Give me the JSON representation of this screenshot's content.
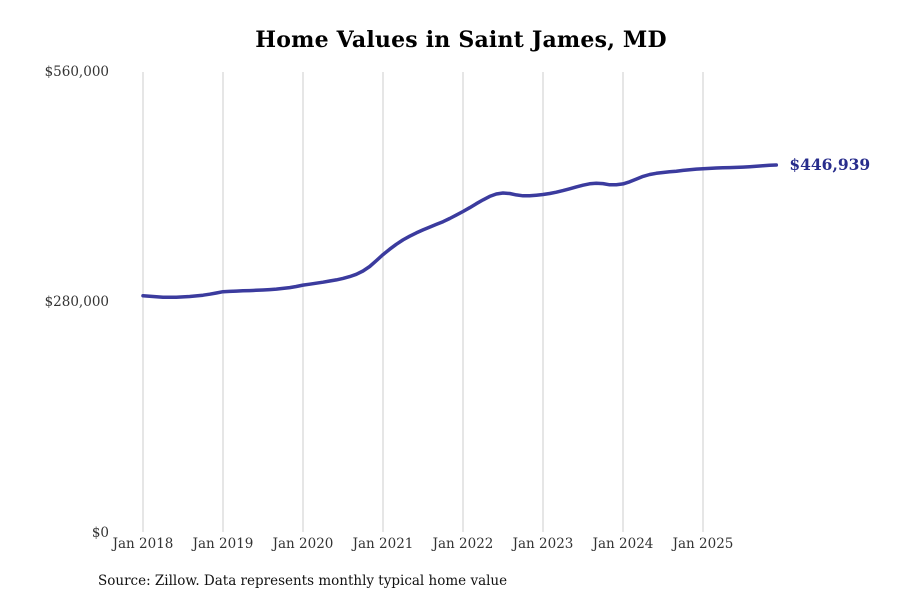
{
  "title": "Home Values in Saint James, MD",
  "source_note": "Source: Zillow. Data represents monthly typical home value",
  "end_label": "$446,939",
  "colors": {
    "line": "#3b3b9e",
    "end_label": "#282d8c",
    "gridline": "#cccccc",
    "tick_text": "#333333",
    "title_text": "#000000",
    "source_text": "#111111"
  },
  "chart_data": {
    "type": "line",
    "title": "Home Values in Saint James, MD",
    "x_start": "Jan 2018",
    "x_interval": "month",
    "x_tick_labels": [
      "Jan 2018",
      "Jan 2019",
      "Jan 2020",
      "Jan 2021",
      "Jan 2022",
      "Jan 2023",
      "Jan 2024",
      "Jan 2025"
    ],
    "y_ticks": [
      {
        "label": "$0",
        "value": 0
      },
      {
        "label": "$280,000",
        "value": 280000
      },
      {
        "label": "$560,000",
        "value": 560000
      }
    ],
    "ylim": [
      0,
      560000
    ],
    "grid": "vertical-only",
    "legend": "none",
    "last_point_label": "$446,939",
    "last_value": 446939,
    "series": [
      {
        "name": "Typical home value ($)",
        "values": [
          288000,
          287200,
          286600,
          286200,
          286000,
          286100,
          286500,
          287000,
          287700,
          288600,
          289800,
          291300,
          292800,
          293200,
          293600,
          293900,
          294200,
          294500,
          294900,
          295400,
          296000,
          296800,
          297800,
          299200,
          300800,
          302000,
          303200,
          304400,
          305800,
          307200,
          309000,
          311200,
          314000,
          318000,
          323500,
          330500,
          337900,
          344500,
          350500,
          355800,
          360300,
          364300,
          368000,
          371400,
          374700,
          378000,
          381800,
          386000,
          390400,
          395000,
          399800,
          404500,
          408700,
          411700,
          412900,
          412200,
          410500,
          409400,
          409500,
          410200,
          411000,
          412200,
          413800,
          415800,
          418000,
          420300,
          422400,
          424000,
          424800,
          424300,
          422800,
          422900,
          423900,
          426500,
          429800,
          433000,
          435300,
          436800,
          437800,
          438600,
          439400,
          440300,
          441200,
          441900,
          442300,
          442800,
          443300,
          443600,
          443800,
          444000,
          444300,
          444800,
          445400,
          446000,
          446500,
          446939
        ]
      }
    ]
  }
}
